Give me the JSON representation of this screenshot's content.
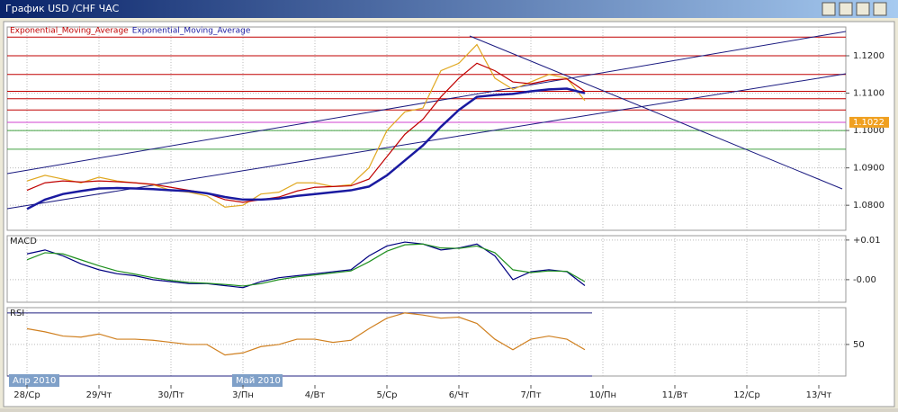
{
  "window": {
    "title": "График USD /CHF  ЧАС"
  },
  "chart_data": [
    {
      "type": "line",
      "x": [
        0,
        0.25,
        0.5,
        0.75,
        1,
        1.25,
        1.5,
        1.75,
        2,
        2.25,
        2.5,
        2.75,
        3,
        3.25,
        3.5,
        3.75,
        4,
        4.25,
        4.5,
        4.75,
        5,
        5.25,
        5.5,
        5.75,
        6,
        6.25,
        6.5,
        6.75,
        7,
        7.25,
        7.5,
        7.75
      ],
      "series": [
        {
          "color": "#e0a820",
          "values": [
            1.0865,
            1.088,
            1.087,
            1.086,
            1.0875,
            1.0865,
            1.086,
            1.0855,
            1.084,
            1.0835,
            1.0825,
            1.0795,
            1.08,
            1.083,
            1.0835,
            1.086,
            1.086,
            1.085,
            1.0855,
            1.09,
            1.1,
            1.105,
            1.106,
            1.116,
            1.118,
            1.123,
            1.114,
            1.111,
            1.113,
            1.115,
            1.114,
            1.108
          ]
        },
        {
          "name": "Exponential_Moving_Average",
          "color": "#c00000",
          "values": [
            1.084,
            1.086,
            1.0865,
            1.0862,
            1.0865,
            1.0863,
            1.086,
            1.0856,
            1.0848,
            1.084,
            1.0832,
            1.0815,
            1.0808,
            1.0815,
            1.0822,
            1.0838,
            1.0848,
            1.085,
            1.0852,
            1.087,
            1.093,
            1.099,
            1.103,
            1.109,
            1.114,
            1.118,
            1.116,
            1.113,
            1.1125,
            1.1135,
            1.1138,
            1.1105
          ]
        },
        {
          "name": "Exponential_Moving_Average",
          "color": "#1a1aa0",
          "values": [
            1.079,
            1.0815,
            1.083,
            1.0838,
            1.0845,
            1.0846,
            1.0845,
            1.0843,
            1.084,
            1.0838,
            1.0832,
            1.0822,
            1.0815,
            1.0815,
            1.0818,
            1.0825,
            1.083,
            1.0835,
            1.084,
            1.085,
            1.088,
            1.092,
            1.096,
            1.101,
            1.1055,
            1.109,
            1.1095,
            1.1098,
            1.1105,
            1.111,
            1.1112,
            1.11
          ]
        }
      ],
      "xlim": [
        -0.275,
        11.375
      ],
      "xticks": [
        {
          "value": 0,
          "label": "28/Ср"
        },
        {
          "value": 1,
          "label": "29/Чт"
        },
        {
          "value": 2,
          "label": "30/Пт"
        },
        {
          "value": 3,
          "label": "3/Пн"
        },
        {
          "value": 4,
          "label": "4/Вт"
        },
        {
          "value": 5,
          "label": "5/Ср"
        },
        {
          "value": 6,
          "label": "6/Чт"
        },
        {
          "value": 7,
          "label": "7/Пт"
        },
        {
          "value": 8,
          "label": "10/Пн"
        },
        {
          "value": 9,
          "label": "11/Вт"
        },
        {
          "value": 10,
          "label": "12/Ср"
        },
        {
          "value": 11,
          "label": "13/Чт"
        }
      ],
      "ylim": [
        1.0733,
        1.1277
      ],
      "yticks": [
        {
          "value": 1.08,
          "label": "1.0800"
        },
        {
          "value": 1.09,
          "label": "1.0900"
        },
        {
          "value": 1.1,
          "label": "1.1000"
        },
        {
          "value": 1.11,
          "label": "1.1100"
        },
        {
          "value": 1.12,
          "label": "1.1200"
        }
      ],
      "hlines": [
        {
          "value": 1.125,
          "color": "#c00000"
        },
        {
          "value": 1.12,
          "color": "#c00000"
        },
        {
          "value": 1.115,
          "color": "#c00000"
        },
        {
          "value": 1.1105,
          "color": "#c00000"
        },
        {
          "value": 1.1085,
          "color": "#c00000"
        },
        {
          "value": 1.1055,
          "color": "#c00000"
        },
        {
          "value": 1.1022,
          "color": "#d040d0"
        },
        {
          "value": 1.1,
          "color": "#40a040"
        },
        {
          "value": 1.095,
          "color": "#40a040"
        }
      ],
      "last_price": 1.1022,
      "grid": true
    },
    {
      "type": "line",
      "title": "MACD",
      "x": [
        0,
        0.25,
        0.5,
        0.75,
        1,
        1.25,
        1.5,
        1.75,
        2,
        2.25,
        2.5,
        2.75,
        3,
        3.25,
        3.5,
        3.75,
        4,
        4.25,
        4.5,
        4.75,
        5,
        5.25,
        5.5,
        5.75,
        6,
        6.25,
        6.5,
        6.75,
        7,
        7.25,
        7.5,
        7.75
      ],
      "series": [
        {
          "color": "#000080",
          "values": [
            0.0065,
            0.0075,
            0.006,
            0.004,
            0.0025,
            0.0015,
            0.001,
            0,
            -0.0005,
            -0.001,
            -0.001,
            -0.0015,
            -0.002,
            -0.0005,
            0.0005,
            0.001,
            0.0015,
            0.002,
            0.0025,
            0.006,
            0.0085,
            0.0095,
            0.009,
            0.0075,
            0.008,
            0.009,
            0.006,
            0,
            0.002,
            0.0025,
            0.002,
            -0.0015
          ]
        },
        {
          "color": "#209020",
          "values": [
            0.005,
            0.0068,
            0.0065,
            0.005,
            0.0035,
            0.0022,
            0.0014,
            0.0005,
            -0.0002,
            -0.0007,
            -0.0009,
            -0.0012,
            -0.0016,
            -0.001,
            0,
            0.0007,
            0.0012,
            0.0017,
            0.0022,
            0.0045,
            0.0072,
            0.0088,
            0.009,
            0.008,
            0.0079,
            0.0085,
            0.0068,
            0.0025,
            0.0018,
            0.0022,
            0.0021,
            -0.0005
          ]
        }
      ],
      "xlim": [
        -0.275,
        11.375
      ],
      "ylim": [
        -0.0057,
        0.0111
      ],
      "yticks": [
        {
          "value": 0.01,
          "label": "+0.01"
        },
        {
          "value": 0,
          "label": "-0.00"
        }
      ],
      "grid": true
    },
    {
      "type": "line",
      "title": "RSI",
      "x": [
        0,
        0.25,
        0.5,
        0.75,
        1,
        1.25,
        1.5,
        1.75,
        2,
        2.25,
        2.5,
        2.75,
        3,
        3.25,
        3.5,
        3.75,
        4,
        4.25,
        4.5,
        4.75,
        5,
        5.25,
        5.5,
        5.75,
        6,
        6.25,
        6.5,
        6.75,
        7,
        7.25,
        7.5,
        7.75
      ],
      "series": [
        {
          "color": "#d08020",
          "values": [
            65,
            62,
            58,
            57,
            60,
            55,
            55,
            54,
            52,
            50,
            50,
            40,
            42,
            48,
            50,
            55,
            55,
            52,
            54,
            65,
            75,
            80,
            78,
            75,
            76,
            70,
            55,
            45,
            55,
            58,
            55,
            45
          ]
        }
      ],
      "xlim": [
        -0.275,
        11.375
      ],
      "ylim": [
        20,
        85
      ],
      "yticks": [
        50
      ],
      "hlines": [
        {
          "value": 80,
          "color": "#202080"
        },
        {
          "value": 20,
          "color": "#202080"
        }
      ],
      "period_labels": [
        {
          "value": -0.25,
          "label": "Апр 2010"
        },
        {
          "value": 2.85,
          "label": "Май 2010"
        }
      ],
      "grid": true
    }
  ]
}
